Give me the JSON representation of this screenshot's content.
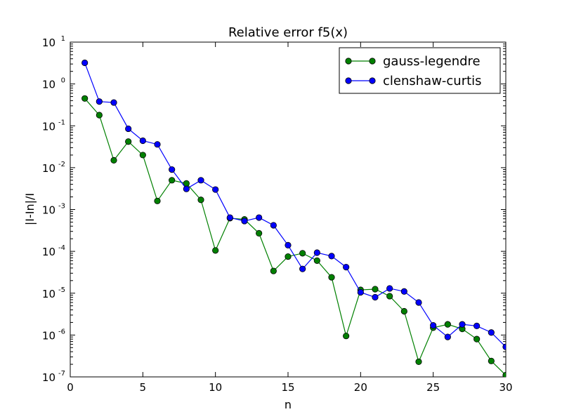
{
  "chart_data": {
    "type": "line",
    "title": "Relative error f5(x)",
    "xlabel": "n",
    "ylabel": "|I-In|/I",
    "xlim": [
      0,
      30
    ],
    "ylim": [
      1e-07,
      10
    ],
    "yscale": "log",
    "grid": false,
    "legend_position": "top-right",
    "x_ticks": [
      0,
      5,
      10,
      15,
      20,
      25,
      30
    ],
    "y_ticks": [
      {
        "value": 1e-07,
        "base": "10",
        "exp": "-7"
      },
      {
        "value": 1e-06,
        "base": "10",
        "exp": "-6"
      },
      {
        "value": 1e-05,
        "base": "10",
        "exp": "-5"
      },
      {
        "value": 0.0001,
        "base": "10",
        "exp": "-4"
      },
      {
        "value": 0.001,
        "base": "10",
        "exp": "-3"
      },
      {
        "value": 0.01,
        "base": "10",
        "exp": "-2"
      },
      {
        "value": 0.1,
        "base": "10",
        "exp": "-1"
      },
      {
        "value": 1,
        "base": "10",
        "exp": "0"
      },
      {
        "value": 10,
        "base": "10",
        "exp": "1"
      }
    ],
    "x": [
      1,
      2,
      3,
      4,
      5,
      6,
      7,
      8,
      9,
      10,
      11,
      12,
      13,
      14,
      15,
      16,
      17,
      18,
      19,
      20,
      21,
      22,
      23,
      24,
      25,
      26,
      27,
      28,
      29,
      30
    ],
    "series": [
      {
        "name": "gauss-legendre",
        "color": "#008000",
        "values": [
          0.45,
          0.18,
          0.015,
          0.042,
          0.02,
          0.0016,
          0.005,
          0.0042,
          0.0017,
          0.000105,
          0.00062,
          0.00058,
          0.00027,
          3.4e-05,
          7.5e-05,
          9e-05,
          6e-05,
          2.4e-05,
          9.5e-07,
          1.2e-05,
          1.25e-05,
          8.5e-06,
          3.7e-06,
          2.3e-07,
          1.5e-06,
          1.8e-06,
          1.4e-06,
          8e-07,
          2.4e-07,
          1.1e-07
        ]
      },
      {
        "name": "clenshaw-curtis",
        "color": "#0000ff",
        "values": [
          3.2,
          0.38,
          0.36,
          0.085,
          0.044,
          0.036,
          0.009,
          0.0031,
          0.005,
          0.003,
          0.00064,
          0.00053,
          0.00064,
          0.00042,
          0.00014,
          3.8e-05,
          9.3e-05,
          7.7e-05,
          4.2e-05,
          1.05e-05,
          8e-06,
          1.3e-05,
          1.1e-05,
          6e-06,
          1.7e-06,
          9e-07,
          1.8e-06,
          1.65e-06,
          1.15e-06,
          5.2e-07
        ]
      }
    ]
  }
}
